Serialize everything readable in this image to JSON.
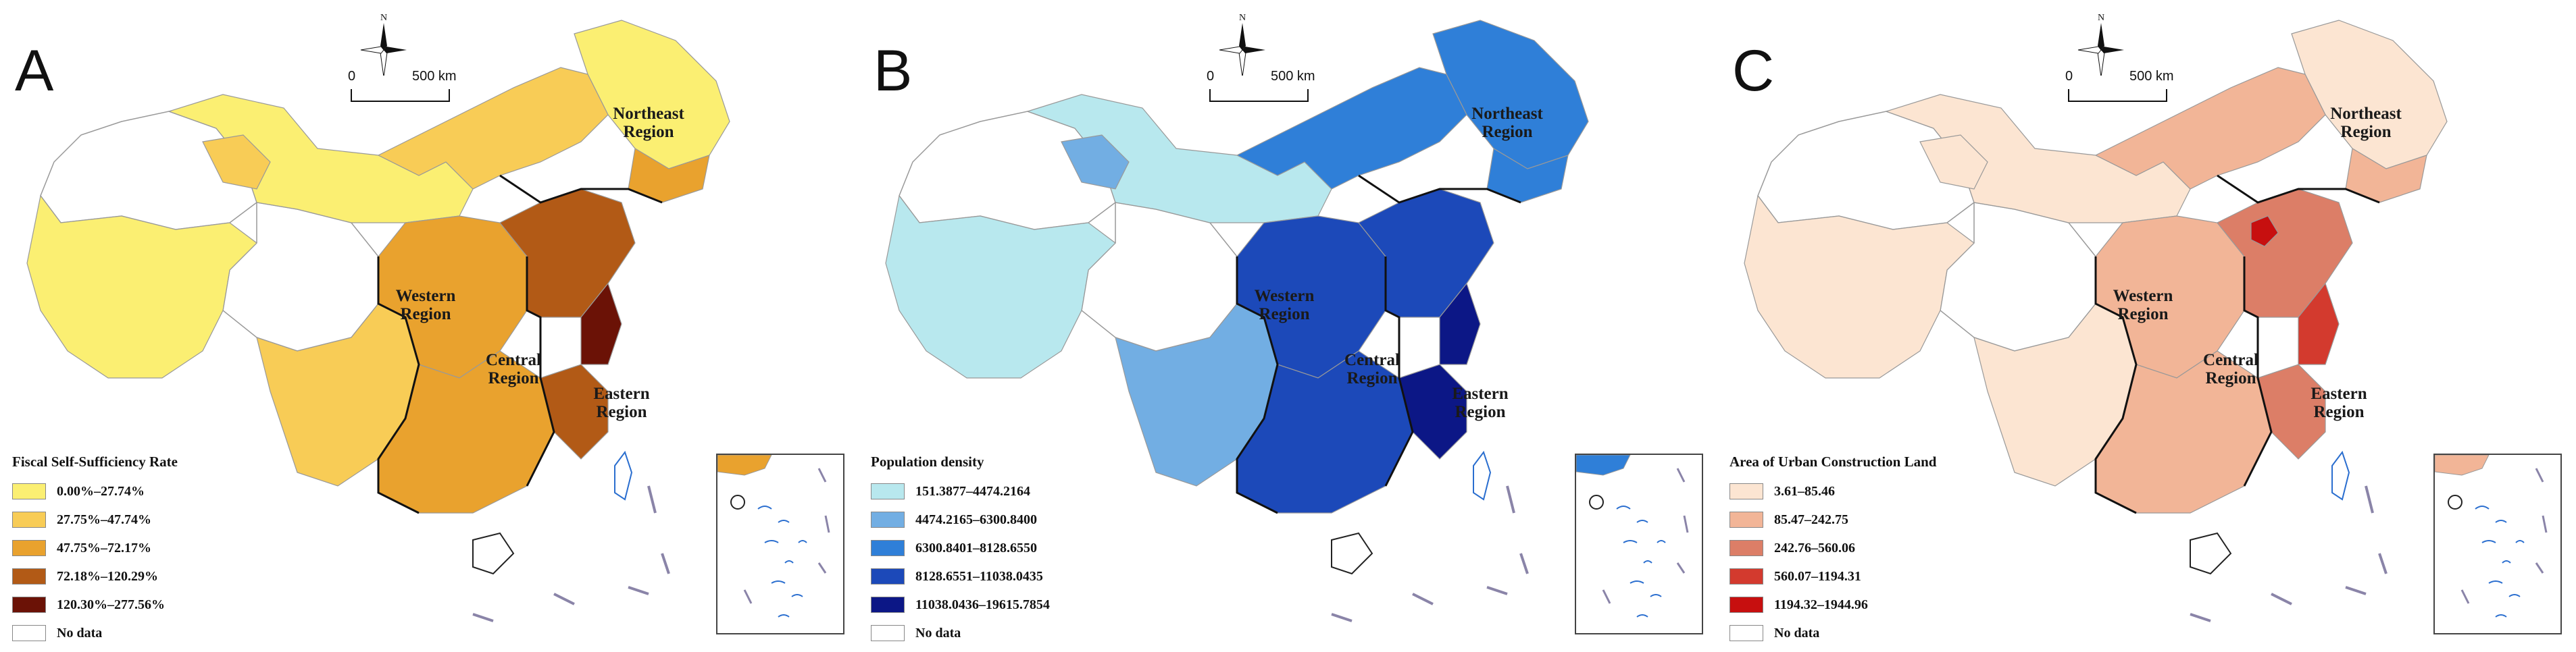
{
  "scale_bar": {
    "zero": "0",
    "distance": "500 km"
  },
  "compass_label": "N",
  "panels": [
    {
      "letter": "A",
      "legend_title": "Fiscal Self-Sufficiency Rate",
      "legend": [
        {
          "label": "0.00%–27.74%",
          "color": "#fbef72"
        },
        {
          "label": "27.75%–47.74%",
          "color": "#f8cc56"
        },
        {
          "label": "47.75%–72.17%",
          "color": "#e9a22e"
        },
        {
          "label": "72.18%–120.29%",
          "color": "#b25a16"
        },
        {
          "label": "120.30%–277.56%",
          "color": "#6b1206"
        },
        {
          "label": "No data",
          "color": "#ffffff"
        }
      ],
      "regions": [
        "Northeast Region",
        "Western Region",
        "Central Region",
        "Eastern Region"
      ]
    },
    {
      "letter": "B",
      "legend_title": "Population density",
      "legend": [
        {
          "label": "151.3877–4474.2164",
          "color": "#b8e8ee"
        },
        {
          "label": "4474.2165–6300.8400",
          "color": "#72aee3"
        },
        {
          "label": "6300.8401–8128.6550",
          "color": "#2f7fd8"
        },
        {
          "label": "8128.6551–11038.0435",
          "color": "#1c49b9"
        },
        {
          "label": "11038.0436–19615.7854",
          "color": "#0c1786"
        },
        {
          "label": "No data",
          "color": "#ffffff"
        }
      ],
      "regions": [
        "Northeast Region",
        "Western Region",
        "Central Region",
        "Eastern Region"
      ]
    },
    {
      "letter": "C",
      "legend_title": "Area of Urban Construction Land",
      "legend": [
        {
          "label": "3.61–85.46",
          "color": "#fce5d2"
        },
        {
          "label": "85.47–242.75",
          "color": "#f2b597"
        },
        {
          "label": "242.76–560.06",
          "color": "#dc7e67"
        },
        {
          "label": "560.07–1194.31",
          "color": "#d33a2e"
        },
        {
          "label": "1194.32–1944.96",
          "color": "#c70f0f"
        },
        {
          "label": "No data",
          "color": "#ffffff"
        }
      ],
      "regions": [
        "Northeast Region",
        "Western Region",
        "Central Region",
        "Eastern Region"
      ]
    }
  ]
}
